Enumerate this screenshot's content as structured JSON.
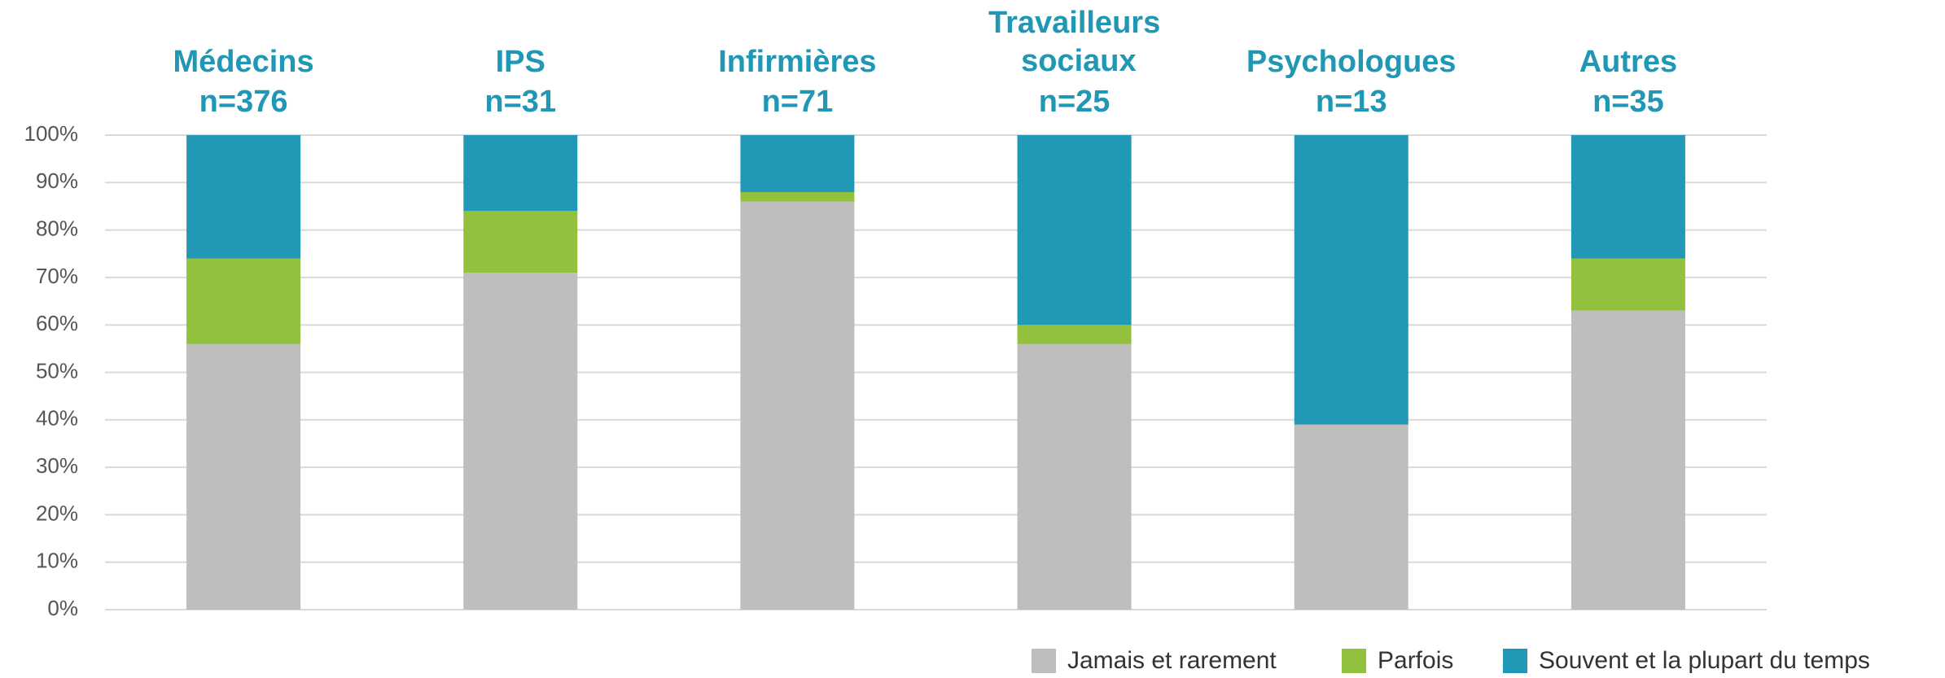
{
  "chart_data": {
    "type": "stacked_bar",
    "categories": [
      "Médecins",
      "IPS",
      "Infirmières",
      "Travailleurs sociaux",
      "Psychologues",
      "Autres"
    ],
    "sample_sizes": [
      "n=376",
      "n=31",
      "n=71",
      "n=25",
      "n=13",
      "n=35"
    ],
    "series": [
      {
        "name": "Jamais et rarement",
        "color": "#bfbebf",
        "values": [
          56,
          71,
          86,
          56,
          39,
          63
        ]
      },
      {
        "name": "Parfois",
        "color": "#92c13e",
        "values": [
          18,
          13,
          2,
          4,
          0,
          11
        ]
      },
      {
        "name": "Souvent et la plupart du temps",
        "color": "#2198b5",
        "values": [
          26,
          16,
          12,
          40,
          61,
          26
        ]
      }
    ],
    "ylim": [
      0,
      100
    ],
    "yticks": [
      {
        "value": 0,
        "label": "0%"
      },
      {
        "value": 10,
        "label": "10%"
      },
      {
        "value": 20,
        "label": "20%"
      },
      {
        "value": 30,
        "label": "30%"
      },
      {
        "value": 40,
        "label": "40%"
      },
      {
        "value": 50,
        "label": "50%"
      },
      {
        "value": 60,
        "label": "60%"
      },
      {
        "value": 70,
        "label": "70%"
      },
      {
        "value": 80,
        "label": "80%"
      },
      {
        "value": 90,
        "label": "90%"
      },
      {
        "value": 100,
        "label": "100%"
      }
    ],
    "grid": true,
    "legend": "bottom-right",
    "category_label_color": "#1f97b5"
  }
}
